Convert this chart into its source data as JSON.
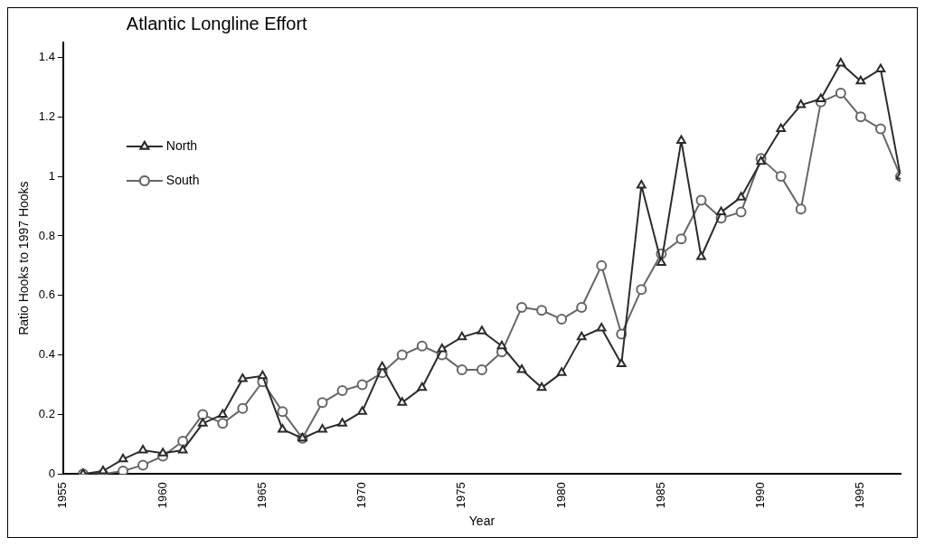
{
  "chart_data": {
    "type": "line",
    "title": "Atlantic Longline Effort",
    "xlabel": "Year",
    "ylabel": "Ratio Hooks to 1997 Hooks",
    "x": [
      1956,
      1957,
      1958,
      1959,
      1960,
      1961,
      1962,
      1963,
      1964,
      1965,
      1966,
      1967,
      1968,
      1969,
      1970,
      1971,
      1972,
      1973,
      1974,
      1975,
      1976,
      1977,
      1978,
      1979,
      1980,
      1981,
      1982,
      1983,
      1984,
      1985,
      1986,
      1987,
      1988,
      1989,
      1990,
      1991,
      1992,
      1993,
      1994,
      1995,
      1996,
      1997
    ],
    "series": [
      {
        "name": "North",
        "color": "#2b2b2b",
        "marker": "triangle",
        "values": [
          0,
          0.01,
          0.05,
          0.08,
          0.07,
          0.08,
          0.17,
          0.2,
          0.32,
          0.33,
          0.15,
          0.12,
          0.15,
          0.17,
          0.21,
          0.36,
          0.24,
          0.29,
          0.42,
          0.46,
          0.48,
          0.43,
          0.35,
          0.29,
          0.34,
          0.46,
          0.49,
          0.37,
          0.97,
          0.71,
          1.12,
          0.73,
          0.88,
          0.93,
          1.05,
          1.16,
          1.24,
          1.26,
          1.38,
          1.32,
          1.36,
          1.0
        ]
      },
      {
        "name": "South",
        "color": "#666666",
        "marker": "circle",
        "values": [
          0,
          0,
          0.01,
          0.03,
          0.06,
          0.11,
          0.2,
          0.17,
          0.22,
          0.31,
          0.21,
          0.12,
          0.24,
          0.28,
          0.3,
          0.34,
          0.4,
          0.43,
          0.4,
          0.35,
          0.35,
          0.41,
          0.56,
          0.55,
          0.52,
          0.56,
          0.7,
          0.47,
          0.62,
          0.74,
          0.79,
          0.92,
          0.86,
          0.88,
          1.06,
          1.0,
          0.89,
          1.25,
          1.28,
          1.2,
          1.16,
          1.0
        ]
      }
    ],
    "xlim": [
      1955,
      1997
    ],
    "xticks": [
      1955,
      1960,
      1965,
      1970,
      1975,
      1980,
      1985,
      1990,
      1995
    ],
    "ylim": [
      0,
      1.45
    ],
    "yticks": [
      0,
      0.2,
      0.4,
      0.6,
      0.8,
      1,
      1.2,
      1.4
    ],
    "grid": false,
    "legend": "top left",
    "line_style": "solid"
  }
}
